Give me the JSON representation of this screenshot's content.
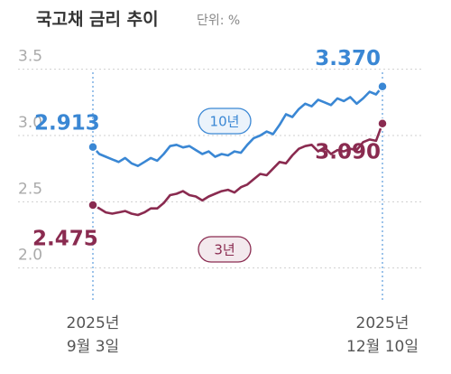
{
  "chart_data": {
    "type": "line",
    "title": "국고채 금리 추이",
    "subtitle": "단위: %",
    "categories": [
      "2025년\n9월 3일",
      null,
      null,
      null,
      null,
      null,
      null,
      null,
      null,
      null,
      null,
      null,
      null,
      null,
      null,
      null,
      null,
      null,
      null,
      null,
      null,
      null,
      null,
      null,
      null,
      null,
      null,
      null,
      null,
      null,
      null,
      null,
      null,
      null,
      null,
      null,
      null,
      null,
      null,
      null,
      null,
      null,
      null,
      null,
      null,
      "2025년\n12월 10일"
    ],
    "series": [
      {
        "name": "10년",
        "color": "#3a87d4",
        "values": [
          2.913,
          2.86,
          2.84,
          2.82,
          2.8,
          2.83,
          2.79,
          2.77,
          2.8,
          2.83,
          2.81,
          2.86,
          2.92,
          2.93,
          2.91,
          2.92,
          2.89,
          2.86,
          2.88,
          2.84,
          2.86,
          2.85,
          2.88,
          2.87,
          2.93,
          2.98,
          3.0,
          3.03,
          3.01,
          3.08,
          3.16,
          3.14,
          3.2,
          3.24,
          3.22,
          3.27,
          3.25,
          3.23,
          3.28,
          3.26,
          3.29,
          3.24,
          3.28,
          3.33,
          3.31,
          3.37
        ],
        "value_labels": [
          "2.913",
          null,
          null,
          null,
          null,
          null,
          null,
          null,
          null,
          null,
          null,
          null,
          null,
          null,
          null,
          null,
          null,
          null,
          null,
          null,
          null,
          null,
          null,
          null,
          null,
          null,
          null,
          null,
          null,
          null,
          null,
          null,
          null,
          null,
          null,
          null,
          null,
          null,
          null,
          null,
          null,
          null,
          null,
          null,
          null,
          "3.370"
        ]
      },
      {
        "name": "3년",
        "color": "#8a2b50",
        "values": [
          2.475,
          2.45,
          2.42,
          2.41,
          2.42,
          2.43,
          2.41,
          2.4,
          2.42,
          2.45,
          2.45,
          2.49,
          2.55,
          2.56,
          2.58,
          2.55,
          2.54,
          2.51,
          2.54,
          2.56,
          2.58,
          2.59,
          2.57,
          2.61,
          2.63,
          2.67,
          2.71,
          2.7,
          2.75,
          2.8,
          2.79,
          2.85,
          2.9,
          2.92,
          2.93,
          2.88,
          2.91,
          2.86,
          2.89,
          2.88,
          2.9,
          2.89,
          2.95,
          2.97,
          2.96,
          3.09
        ],
        "value_labels": [
          "2.475",
          null,
          null,
          null,
          null,
          null,
          null,
          null,
          null,
          null,
          null,
          null,
          null,
          null,
          null,
          null,
          null,
          null,
          null,
          null,
          null,
          null,
          null,
          null,
          null,
          null,
          null,
          null,
          null,
          null,
          null,
          null,
          null,
          null,
          null,
          null,
          null,
          null,
          null,
          null,
          null,
          null,
          null,
          null,
          null,
          "3.090"
        ]
      }
    ],
    "ylim": [
      1.8,
      3.6
    ],
    "yticks": [
      {
        "value": 2,
        "label": "2.0"
      },
      2.5,
      {
        "value": 3,
        "label": "3.0"
      },
      3.5
    ],
    "grid": true
  }
}
